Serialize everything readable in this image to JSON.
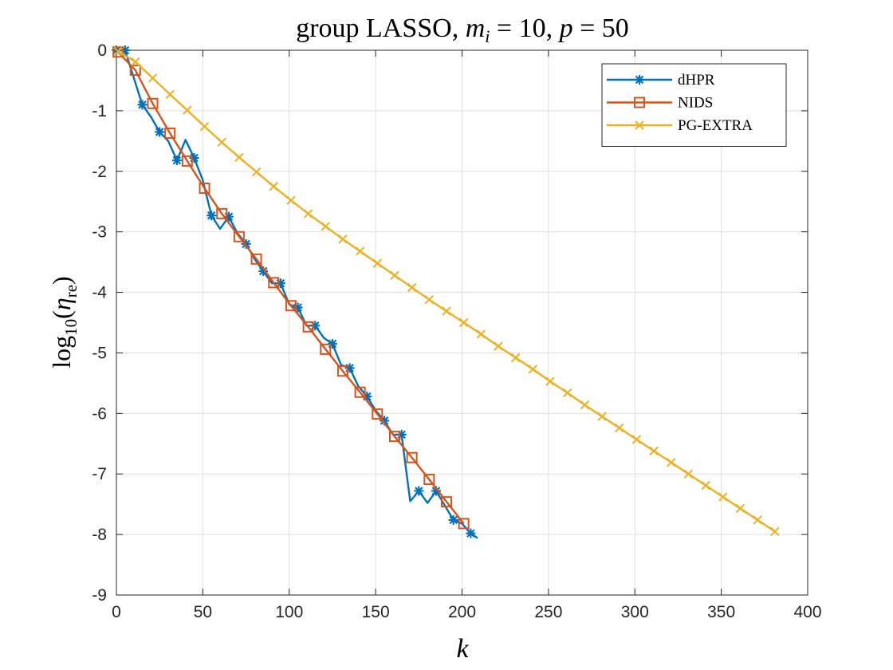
{
  "chart_data": {
    "type": "line",
    "title": {
      "prefix": "group LASSO, ",
      "m_symbol": "m",
      "m_subscript": "i",
      "m_value": " = 10, ",
      "p_symbol": "p",
      "p_value": " = 50"
    },
    "xlabel": "k",
    "ylabel": {
      "base": "log",
      "base_sub": "10",
      "open": "(",
      "symbol": "η",
      "symbol_sub": "re",
      "close": ")"
    },
    "xlim": [
      0,
      400
    ],
    "ylim": [
      -9,
      0
    ],
    "xticks": [
      0,
      50,
      100,
      150,
      200,
      250,
      300,
      350,
      400
    ],
    "yticks": [
      0,
      -1,
      -2,
      -3,
      -4,
      -5,
      -6,
      -7,
      -8,
      -9
    ],
    "grid": true,
    "legend_position": "top-right",
    "series": [
      {
        "name": "dHPR",
        "color": "#0072BD",
        "marker": "asterisk",
        "x": [
          0,
          5,
          10,
          15,
          20,
          25,
          30,
          35,
          40,
          45,
          50,
          55,
          60,
          65,
          70,
          75,
          80,
          85,
          90,
          95,
          100,
          105,
          110,
          115,
          120,
          125,
          130,
          135,
          140,
          145,
          150,
          155,
          160,
          165,
          170,
          175,
          180,
          185,
          190,
          195,
          200,
          205,
          209
        ],
        "y": [
          0.0,
          0.0,
          -0.45,
          -0.9,
          -1.1,
          -1.35,
          -1.5,
          -1.82,
          -1.48,
          -1.78,
          -2.15,
          -2.73,
          -2.95,
          -2.75,
          -3.02,
          -3.2,
          -3.45,
          -3.65,
          -3.85,
          -3.85,
          -4.2,
          -4.25,
          -4.55,
          -4.55,
          -4.75,
          -4.85,
          -5.2,
          -5.25,
          -5.55,
          -5.72,
          -5.95,
          -6.12,
          -6.35,
          -6.35,
          -7.45,
          -7.28,
          -7.48,
          -7.28,
          -7.52,
          -7.76,
          -7.82,
          -7.98,
          -8.06
        ],
        "marker_x": [
          0,
          5,
          15,
          25,
          35,
          45,
          55,
          65,
          75,
          85,
          95,
          105,
          115,
          125,
          135,
          145,
          155,
          165,
          175,
          185,
          195,
          205
        ]
      },
      {
        "name": "NIDS",
        "color": "#D95319",
        "marker": "square",
        "x": [
          1,
          11,
          21,
          31,
          41,
          51,
          61,
          71,
          81,
          91,
          101,
          111,
          121,
          131,
          141,
          151,
          161,
          171,
          181,
          191,
          201
        ],
        "y": [
          -0.03,
          -0.33,
          -0.88,
          -1.37,
          -1.83,
          -2.28,
          -2.7,
          -3.08,
          -3.45,
          -3.84,
          -4.22,
          -4.57,
          -4.94,
          -5.3,
          -5.65,
          -6.01,
          -6.38,
          -6.73,
          -7.09,
          -7.46,
          -7.82
        ],
        "marker_x": [
          1,
          11,
          21,
          31,
          41,
          51,
          61,
          71,
          81,
          91,
          101,
          111,
          121,
          131,
          141,
          151,
          161,
          171,
          181,
          191,
          201
        ]
      },
      {
        "name": "PG-EXTRA",
        "color": "#EDB120",
        "marker": "x",
        "x": [
          1,
          11,
          21,
          31,
          41,
          51,
          61,
          71,
          81,
          91,
          101,
          111,
          121,
          131,
          141,
          151,
          161,
          171,
          181,
          191,
          201,
          211,
          221,
          231,
          241,
          251,
          261,
          271,
          281,
          291,
          301,
          311,
          321,
          331,
          341,
          351,
          361,
          371,
          381
        ],
        "y": [
          -0.02,
          -0.19,
          -0.46,
          -0.73,
          -0.99,
          -1.26,
          -1.52,
          -1.77,
          -2.01,
          -2.25,
          -2.48,
          -2.7,
          -2.91,
          -3.12,
          -3.32,
          -3.52,
          -3.72,
          -3.92,
          -4.12,
          -4.31,
          -4.5,
          -4.69,
          -4.89,
          -5.08,
          -5.27,
          -5.47,
          -5.66,
          -5.86,
          -6.05,
          -6.24,
          -6.43,
          -6.62,
          -6.81,
          -7.0,
          -7.19,
          -7.38,
          -7.57,
          -7.76,
          -7.95
        ],
        "marker_x": [
          1,
          11,
          21,
          31,
          41,
          51,
          61,
          71,
          81,
          91,
          101,
          111,
          121,
          131,
          141,
          151,
          161,
          171,
          181,
          191,
          201,
          211,
          221,
          231,
          241,
          251,
          261,
          271,
          281,
          291,
          301,
          311,
          321,
          331,
          341,
          351,
          361,
          371,
          381
        ]
      }
    ]
  }
}
